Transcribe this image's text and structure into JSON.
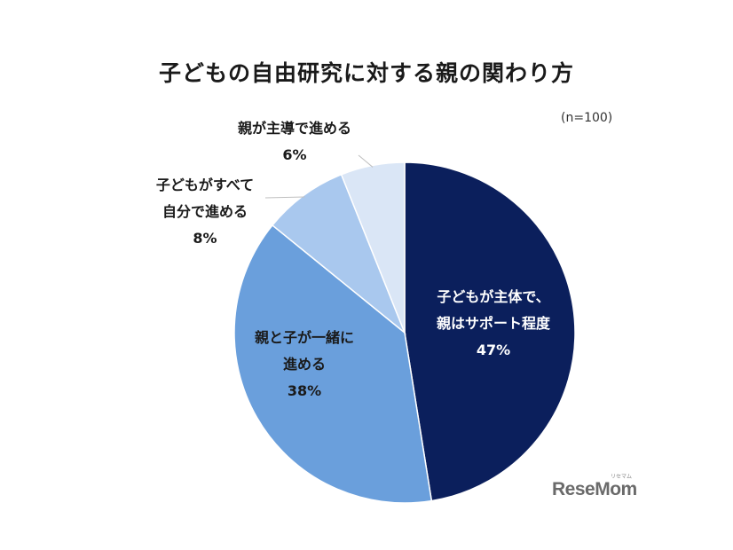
{
  "chart_data": {
    "type": "pie",
    "title": "子どもの自由研究に対する親の関わり方",
    "sample_note": "(n=100)",
    "slices": [
      {
        "label_lines": [
          "子どもが主体で、",
          "親はサポート程度"
        ],
        "value": 47,
        "value_text": "47%",
        "color": "#0b1f5c",
        "text_color": "#ffffff"
      },
      {
        "label_lines": [
          "親と子が一緒に",
          "進める"
        ],
        "value": 38,
        "value_text": "38%",
        "color": "#6a9fdc",
        "text_color": "#1a1a1a"
      },
      {
        "label_lines": [
          "子どもがすべて",
          "自分で進める"
        ],
        "value": 8,
        "value_text": "8%",
        "color": "#a9c8ee",
        "text_color": "#1a1a1a"
      },
      {
        "label_lines": [
          "親が主導で進める"
        ],
        "value": 6,
        "value_text": "6%",
        "color": "#dae6f6",
        "text_color": "#1a1a1a"
      }
    ],
    "start": "12 o'clock",
    "direction": "clockwise"
  },
  "watermark": {
    "text": "ReseMom",
    "kana": "リセマム"
  }
}
